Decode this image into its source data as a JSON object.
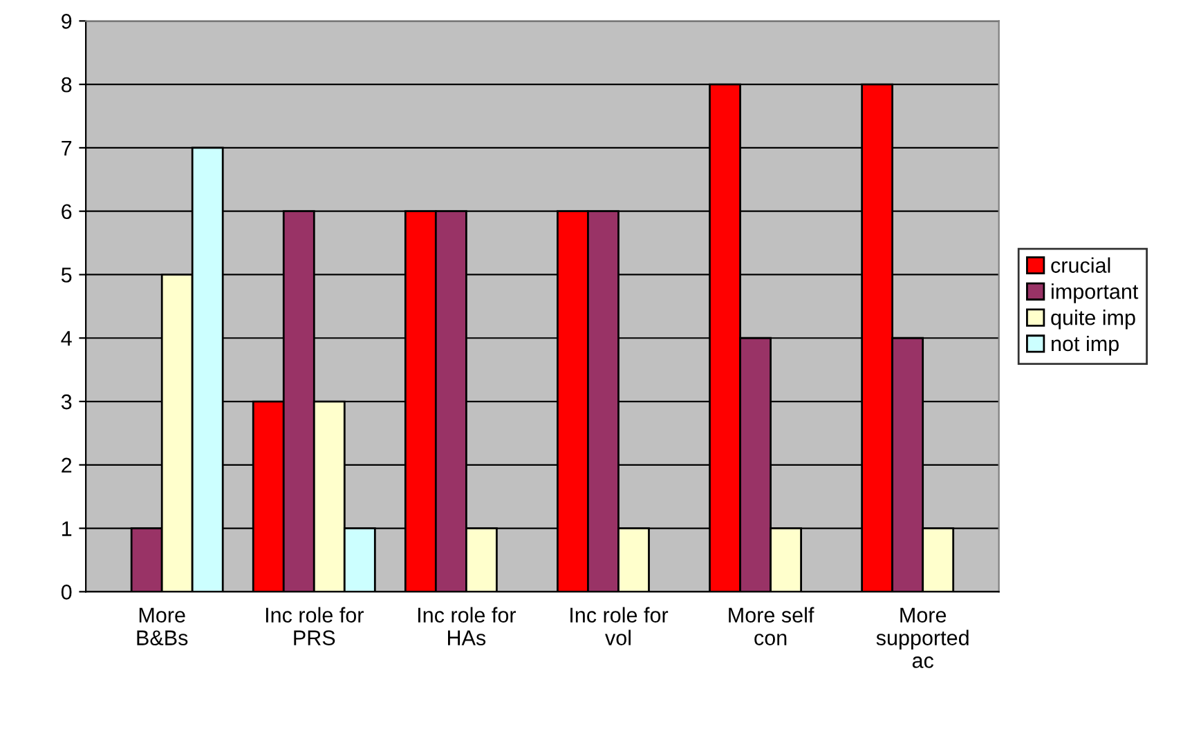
{
  "chart_data": {
    "type": "bar",
    "categories": [
      "More\nB&Bs",
      "Inc role for\nPRS",
      "Inc role for\nHAs",
      "Inc role for\nvol",
      "More self\ncon",
      "More\nsupported\nac"
    ],
    "series": [
      {
        "name": "crucial",
        "color": "#ff0000",
        "values": [
          null,
          3,
          6,
          6,
          8,
          8
        ]
      },
      {
        "name": "important",
        "color": "#993366",
        "values": [
          1,
          6,
          6,
          6,
          4,
          4
        ]
      },
      {
        "name": "quite imp",
        "color": "#ffffcc",
        "values": [
          5,
          3,
          1,
          1,
          1,
          1
        ]
      },
      {
        "name": "not imp",
        "color": "#ccffff",
        "values": [
          7,
          1,
          null,
          null,
          null,
          null
        ]
      }
    ],
    "ylim": [
      0,
      9
    ],
    "yticks": [
      0,
      1,
      2,
      3,
      4,
      5,
      6,
      7,
      8,
      9
    ],
    "grid": "y",
    "legend": "right"
  }
}
